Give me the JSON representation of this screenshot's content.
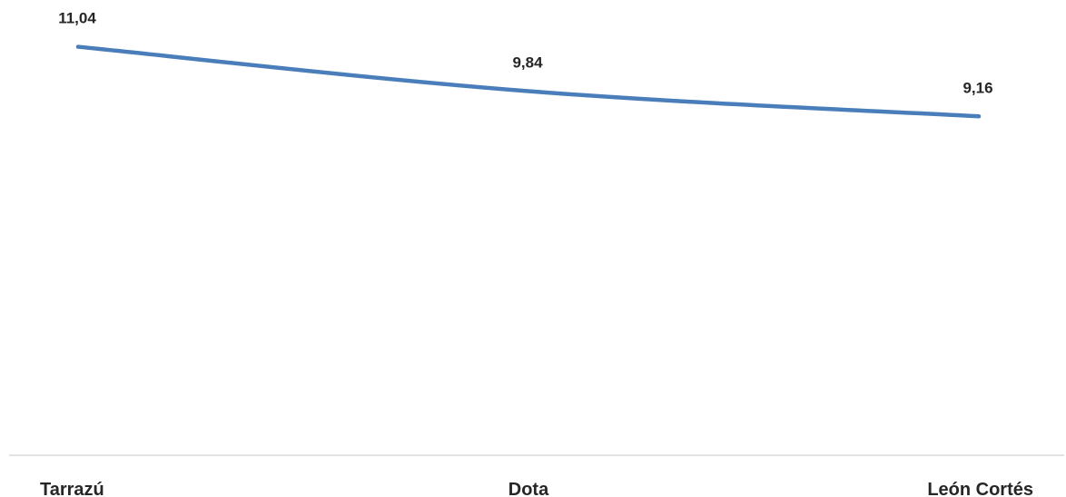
{
  "chart_data": {
    "type": "line",
    "title": "",
    "xlabel": "",
    "ylabel": "",
    "categories": [
      "Tarrazú",
      "Dota",
      "León Cortés"
    ],
    "series": [
      {
        "values": [
          11.04,
          9.84,
          9.16
        ],
        "data_labels": [
          "11,04",
          "9,84",
          "9,16"
        ]
      }
    ],
    "ylim": [
      0,
      13.2
    ],
    "grid": false,
    "legend": "none",
    "colors": {
      "line": "#4a7ebb",
      "axis": "#d9d9d9",
      "text": "#262626"
    }
  }
}
